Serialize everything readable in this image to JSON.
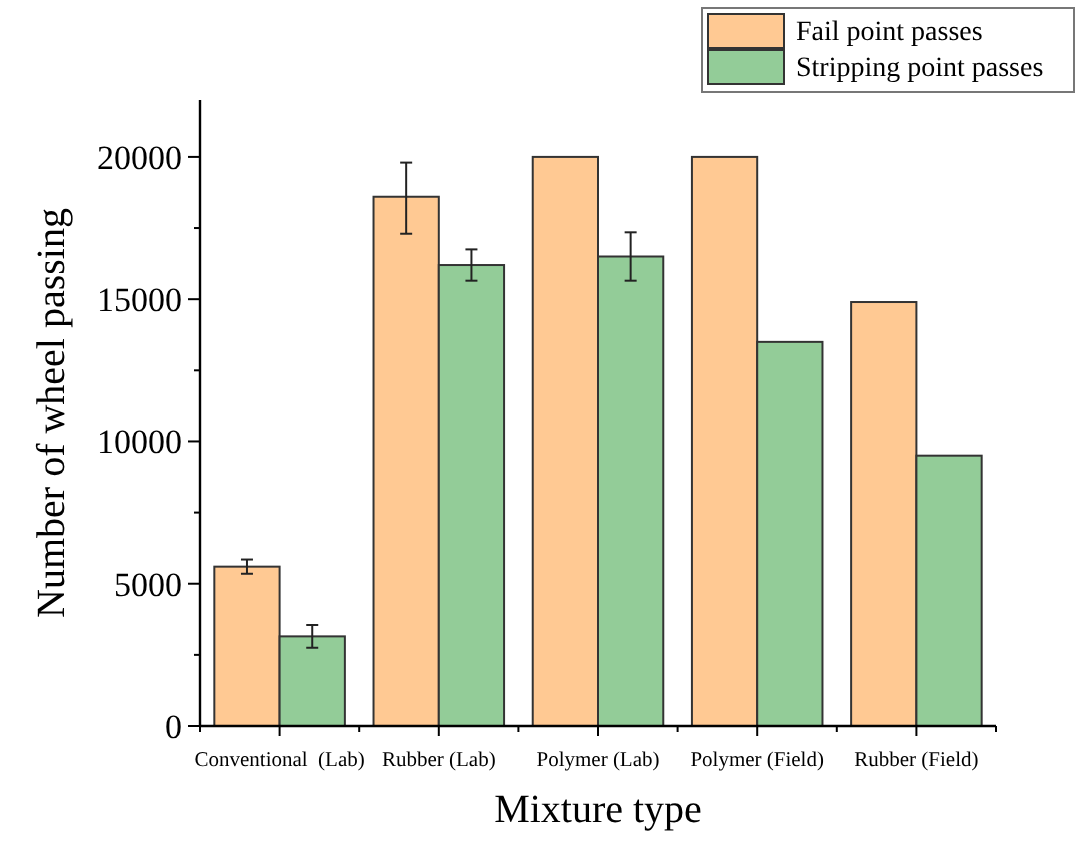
{
  "chart_data": {
    "type": "bar",
    "xlabel": "Mixture type",
    "ylabel": "Number of wheel passing",
    "categories": [
      "Conventional  (Lab)",
      "Rubber (Lab)",
      "Polymer (Lab)",
      "Polymer (Field)",
      "Rubber (Field)"
    ],
    "series": [
      {
        "name": "Fail point passes",
        "color": "#ffc993",
        "values": [
          5600,
          18600,
          20000,
          20000,
          14900
        ],
        "errors": [
          250,
          [
            17300,
            19800
          ],
          null,
          null,
          null
        ]
      },
      {
        "name": "Stripping point passes",
        "color": "#93cc98",
        "values": [
          3150,
          16200,
          16500,
          13500,
          9500
        ],
        "errors": [
          400,
          550,
          850,
          null,
          null
        ]
      }
    ],
    "ylim": [
      0,
      22000
    ],
    "yticks": [
      0,
      {
        "value": 2500,
        "label": null
      },
      5000,
      {
        "value": 7500,
        "label": null
      },
      10000,
      {
        "value": 12500,
        "label": null
      },
      15000,
      {
        "value": 17500,
        "label": null
      },
      20000
    ],
    "grid": false,
    "legend": "top right"
  }
}
